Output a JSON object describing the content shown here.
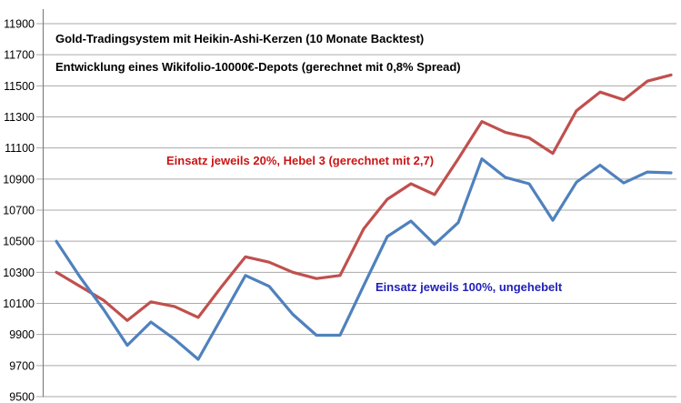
{
  "chart_data": {
    "type": "line",
    "title_line1": "Gold-Tradingsystem mit Heikin-Ashi-Kerzen (10 Monate Backtest)",
    "title_line2": "Entwicklung eines Wikifolio-10000€-Depots (gerechnet mit 0,8% Spread)",
    "xlabel": "",
    "ylabel": "",
    "ylim": [
      9500,
      11900
    ],
    "ytick_step": 200,
    "yticks": [
      9500,
      9700,
      9900,
      10100,
      10300,
      10500,
      10700,
      10900,
      11100,
      11300,
      11500,
      11700,
      11900
    ],
    "x_points": 27,
    "grid": "horizontal",
    "legend_position": "inline-annotations",
    "axis_color": "#808080",
    "grid_color": "#aaaaaa",
    "tick_label_color": "#000000",
    "series": [
      {
        "name": "Einsatz jeweils 20%, Hebel 3 (gerechnet mit 2,7)",
        "color": "#c0504d",
        "label_color": "#cc1414",
        "values": [
          10300,
          10210,
          10120,
          9990,
          10110,
          10080,
          10010,
          10210,
          10400,
          10365,
          10300,
          10260,
          10280,
          10580,
          10770,
          10870,
          10800,
          11030,
          11270,
          11200,
          11165,
          11065,
          11340,
          11460,
          11410,
          11530,
          11570
        ]
      },
      {
        "name": "Einsatz jeweils 100%, ungehebelt",
        "color": "#4f81bd",
        "label_color": "#1f1fb8",
        "values": [
          10500,
          10270,
          10060,
          9830,
          9980,
          9870,
          9740,
          10010,
          10280,
          10210,
          10030,
          9895,
          9895,
          10215,
          10530,
          10630,
          10480,
          10620,
          11030,
          10910,
          10870,
          10635,
          10880,
          10990,
          10875,
          10945,
          10940
        ]
      }
    ]
  }
}
